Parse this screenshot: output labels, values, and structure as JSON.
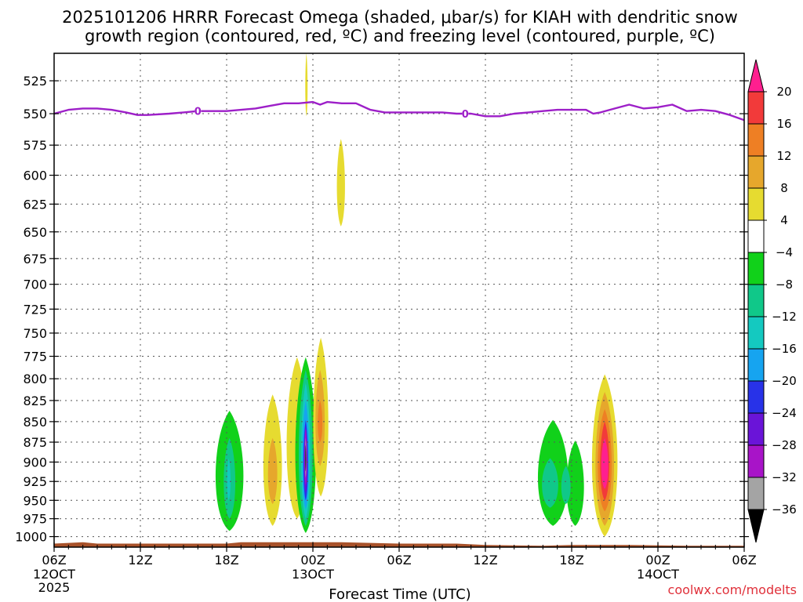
{
  "chart_data": {
    "type": "time-height",
    "title_line1": "2025101206 HRRR Forecast Omega (shaded, μbar/s) for KIAH with dendritic snow",
    "title_line2": "growth region (contoured, red, ºC) and freezing level (contoured, purple, ºC)",
    "xlabel": "Forecast Time (UTC)",
    "credit": "coolwx.com/modelts",
    "x_range_hours": [
      0,
      48
    ],
    "x_ticks": [
      {
        "h": 0,
        "label": "06Z",
        "date": "12OCT",
        "year": "2025"
      },
      {
        "h": 6,
        "label": "12Z"
      },
      {
        "h": 12,
        "label": "18Z"
      },
      {
        "h": 18,
        "label": "00Z",
        "date": "13OCT"
      },
      {
        "h": 24,
        "label": "06Z"
      },
      {
        "h": 30,
        "label": "12Z"
      },
      {
        "h": 36,
        "label": "18Z"
      },
      {
        "h": 42,
        "label": "00Z",
        "date": "14OCT"
      },
      {
        "h": 48,
        "label": "06Z"
      }
    ],
    "pressure_range_mb": [
      1015,
      505
    ],
    "y_ticks": [
      "525",
      "550",
      "575",
      "600",
      "625",
      "650",
      "675",
      "700",
      "725",
      "750",
      "775",
      "800",
      "825",
      "850",
      "875",
      "900",
      "925",
      "950",
      "975",
      "1000"
    ],
    "colorbar": {
      "labels": [
        "20",
        "16",
        "12",
        "8",
        "4",
        "−4",
        "−8",
        "−12",
        "−16",
        "−20",
        "−24",
        "−28",
        "−32",
        "−36"
      ],
      "bins": [
        {
          "from": 24,
          "to": 20,
          "color": "#ff1f8f"
        },
        {
          "from": 20,
          "to": 16,
          "color": "#f23a3a"
        },
        {
          "from": 16,
          "to": 12,
          "color": "#ee7f24"
        },
        {
          "from": 12,
          "to": 8,
          "color": "#e6a72c"
        },
        {
          "from": 8,
          "to": 4,
          "color": "#e6db30"
        },
        {
          "from": 4,
          "to": -4,
          "color": "#ffffff"
        },
        {
          "from": -4,
          "to": -8,
          "color": "#11d11a"
        },
        {
          "from": -8,
          "to": -12,
          "color": "#10c889"
        },
        {
          "from": -12,
          "to": -16,
          "color": "#14c9c0"
        },
        {
          "from": -16,
          "to": -20,
          "color": "#16a4f0"
        },
        {
          "from": -20,
          "to": -24,
          "color": "#2832e8"
        },
        {
          "from": -24,
          "to": -28,
          "color": "#6a14d8"
        },
        {
          "from": -28,
          "to": -32,
          "color": "#a814c8"
        },
        {
          "from": -32,
          "to": -36,
          "color": "#a4a4a4"
        },
        {
          "from": -36,
          "to": -40,
          "color": "#000000"
        }
      ]
    },
    "freezing_level_label": "0",
    "freezing_level_label_hours": [
      10.0,
      28.6
    ],
    "freezing_level_mb": [
      [
        0,
        550
      ],
      [
        1,
        547
      ],
      [
        2,
        546
      ],
      [
        3,
        546
      ],
      [
        4,
        547
      ],
      [
        5,
        549
      ],
      [
        5.8,
        551
      ],
      [
        6.5,
        551
      ],
      [
        8,
        550
      ],
      [
        9,
        549
      ],
      [
        10,
        548
      ],
      [
        11,
        548
      ],
      [
        12,
        548
      ],
      [
        13,
        547
      ],
      [
        14,
        546
      ],
      [
        15,
        544
      ],
      [
        16,
        542
      ],
      [
        17,
        542
      ],
      [
        18,
        541
      ],
      [
        18.5,
        543
      ],
      [
        19,
        541
      ],
      [
        20,
        542
      ],
      [
        21,
        542
      ],
      [
        22,
        547
      ],
      [
        23,
        549
      ],
      [
        24,
        549
      ],
      [
        25,
        549
      ],
      [
        26,
        549
      ],
      [
        27,
        549
      ],
      [
        28,
        550
      ],
      [
        29,
        550
      ],
      [
        30,
        552
      ],
      [
        31,
        552
      ],
      [
        32,
        550
      ],
      [
        33,
        549
      ],
      [
        34,
        548
      ],
      [
        35,
        547
      ],
      [
        36,
        547
      ],
      [
        37,
        547
      ],
      [
        37.5,
        550
      ],
      [
        38,
        549
      ],
      [
        39,
        546
      ],
      [
        40,
        543
      ],
      [
        41,
        546
      ],
      [
        42,
        545
      ],
      [
        43,
        543
      ],
      [
        44,
        548
      ],
      [
        45,
        547
      ],
      [
        46,
        548
      ],
      [
        47,
        551
      ],
      [
        48,
        555
      ]
    ],
    "omega_features": [
      {
        "h0": 11.0,
        "h1": 13.4,
        "p_top": 837,
        "p_bot": 992,
        "color": "#11d11a"
      },
      {
        "h0": 11.7,
        "h1": 12.7,
        "p_top": 870,
        "p_bot": 975,
        "color": "#10c889"
      },
      {
        "h0": 12.0,
        "h1": 12.3,
        "p_top": 895,
        "p_bot": 950,
        "color": "#14c9c0"
      },
      {
        "h0": 14.4,
        "h1": 16.0,
        "p_top": 818,
        "p_bot": 985,
        "color": "#e6db30"
      },
      {
        "h0": 16.0,
        "h1": 17.8,
        "p_top": 776,
        "p_bot": 975,
        "color": "#e6db30"
      },
      {
        "h0": 14.8,
        "h1": 15.6,
        "p_top": 870,
        "p_bot": 955,
        "color": "#e6a72c"
      },
      {
        "h0": 16.6,
        "h1": 18.4,
        "p_top": 776,
        "p_bot": 995,
        "color": "#11d11a"
      },
      {
        "h0": 16.9,
        "h1": 18.1,
        "p_top": 790,
        "p_bot": 985,
        "color": "#10c889"
      },
      {
        "h0": 17.1,
        "h1": 17.9,
        "p_top": 805,
        "p_bot": 975,
        "color": "#14c9c0"
      },
      {
        "h0": 17.2,
        "h1": 17.8,
        "p_top": 825,
        "p_bot": 962,
        "color": "#16a4f0"
      },
      {
        "h0": 17.3,
        "h1": 17.7,
        "p_top": 848,
        "p_bot": 950,
        "color": "#2832e8"
      },
      {
        "h0": 17.35,
        "h1": 17.65,
        "p_top": 855,
        "p_bot": 940,
        "color": "#6a14d8"
      },
      {
        "h0": 17.4,
        "h1": 17.6,
        "p_top": 858,
        "p_bot": 930,
        "color": "#a814c8"
      },
      {
        "h0": 17.45,
        "h1": 17.55,
        "p_top": 870,
        "p_bot": 920,
        "color": "#a4a4a4"
      },
      {
        "h0": 17.47,
        "h1": 17.53,
        "p_top": 878,
        "p_bot": 912,
        "color": "#000000"
      },
      {
        "h0": 17.9,
        "h1": 19.2,
        "p_top": 755,
        "p_bot": 945,
        "color": "#e6db30"
      },
      {
        "h0": 18.1,
        "h1": 18.9,
        "p_top": 790,
        "p_bot": 905,
        "color": "#e6a72c"
      },
      {
        "h0": 18.3,
        "h1": 18.7,
        "p_top": 825,
        "p_bot": 875,
        "color": "#ee7f24"
      },
      {
        "h0": 17.45,
        "h1": 17.65,
        "p_top": 505,
        "p_bot": 552,
        "color": "#e6db30"
      },
      {
        "h0": 19.6,
        "h1": 20.3,
        "p_top": 570,
        "p_bot": 645,
        "color": "#e6db30"
      },
      {
        "h0": 33.4,
        "h1": 36.0,
        "p_top": 848,
        "p_bot": 985,
        "color": "#11d11a"
      },
      {
        "h0": 35.5,
        "h1": 37.0,
        "p_top": 873,
        "p_bot": 985,
        "color": "#11d11a"
      },
      {
        "h0": 33.8,
        "h1": 35.2,
        "p_top": 895,
        "p_bot": 960,
        "color": "#10c889"
      },
      {
        "h0": 35.2,
        "h1": 36.0,
        "p_top": 905,
        "p_bot": 955,
        "color": "#10c889"
      },
      {
        "h0": 37.2,
        "h1": 39.4,
        "p_top": 795,
        "p_bot": 1000,
        "color": "#e6db30"
      },
      {
        "h0": 37.5,
        "h1": 39.1,
        "p_top": 815,
        "p_bot": 985,
        "color": "#e6a72c"
      },
      {
        "h0": 37.7,
        "h1": 38.9,
        "p_top": 835,
        "p_bot": 965,
        "color": "#ee7f24"
      },
      {
        "h0": 37.9,
        "h1": 38.7,
        "p_top": 850,
        "p_bot": 950,
        "color": "#f23a3a"
      },
      {
        "h0": 38.0,
        "h1": 38.6,
        "p_top": 870,
        "p_bot": 935,
        "color": "#ff1f8f"
      }
    ],
    "terrain": {
      "color": "#a8522a",
      "surface_mb": [
        [
          0,
          1010
        ],
        [
          2,
          1008
        ],
        [
          3,
          1010
        ],
        [
          5,
          1010
        ],
        [
          8,
          1010
        ],
        [
          12,
          1010
        ],
        [
          13,
          1008
        ],
        [
          20,
          1008
        ],
        [
          22,
          1009
        ],
        [
          24,
          1010
        ],
        [
          28,
          1010
        ],
        [
          30,
          1012
        ],
        [
          34,
          1013
        ],
        [
          36,
          1012
        ],
        [
          40,
          1012
        ],
        [
          44,
          1013
        ],
        [
          48,
          1013
        ]
      ]
    }
  }
}
